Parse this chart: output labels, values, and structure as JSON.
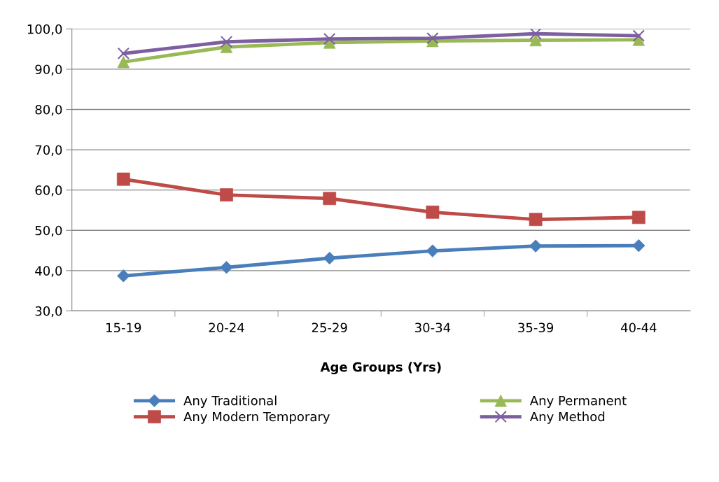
{
  "chart_data": {
    "type": "line",
    "xlabel": "Age Groups (Yrs)",
    "categories": [
      "15-19",
      "20-24",
      "25-29",
      "30-34",
      "35-39",
      "40-44"
    ],
    "series": [
      {
        "name": "Any Traditional",
        "color": "#4a7ebb",
        "marker": "diamond",
        "values": [
          38.7,
          40.8,
          43.1,
          44.9,
          46.1,
          46.2
        ]
      },
      {
        "name": "Any Modern Temporary",
        "color": "#be4b48",
        "marker": "square",
        "values": [
          62.7,
          58.8,
          57.9,
          54.5,
          52.7,
          53.2
        ]
      },
      {
        "name": "Any Permanent",
        "color": "#98b954",
        "marker": "triangle",
        "values": [
          91.8,
          95.5,
          96.6,
          97.0,
          97.2,
          97.3
        ]
      },
      {
        "name": "Any Method",
        "color": "#7d5fa0",
        "marker": "cross",
        "values": [
          93.9,
          96.8,
          97.5,
          97.7,
          98.8,
          98.3
        ]
      }
    ],
    "ylim": [
      30,
      100
    ],
    "yticks": [
      {
        "value": 30,
        "label": "30,0"
      },
      {
        "value": 40,
        "label": "40,0"
      },
      {
        "value": 50,
        "label": "50,0"
      },
      {
        "value": 60,
        "label": "60,0"
      },
      {
        "value": 70,
        "label": "70,0"
      },
      {
        "value": 80,
        "label": "80,0"
      },
      {
        "value": 90,
        "label": "90,0"
      },
      {
        "value": 100,
        "label": "100,0"
      }
    ],
    "grid": "y",
    "legend": "bottom",
    "line_style": "solid"
  }
}
